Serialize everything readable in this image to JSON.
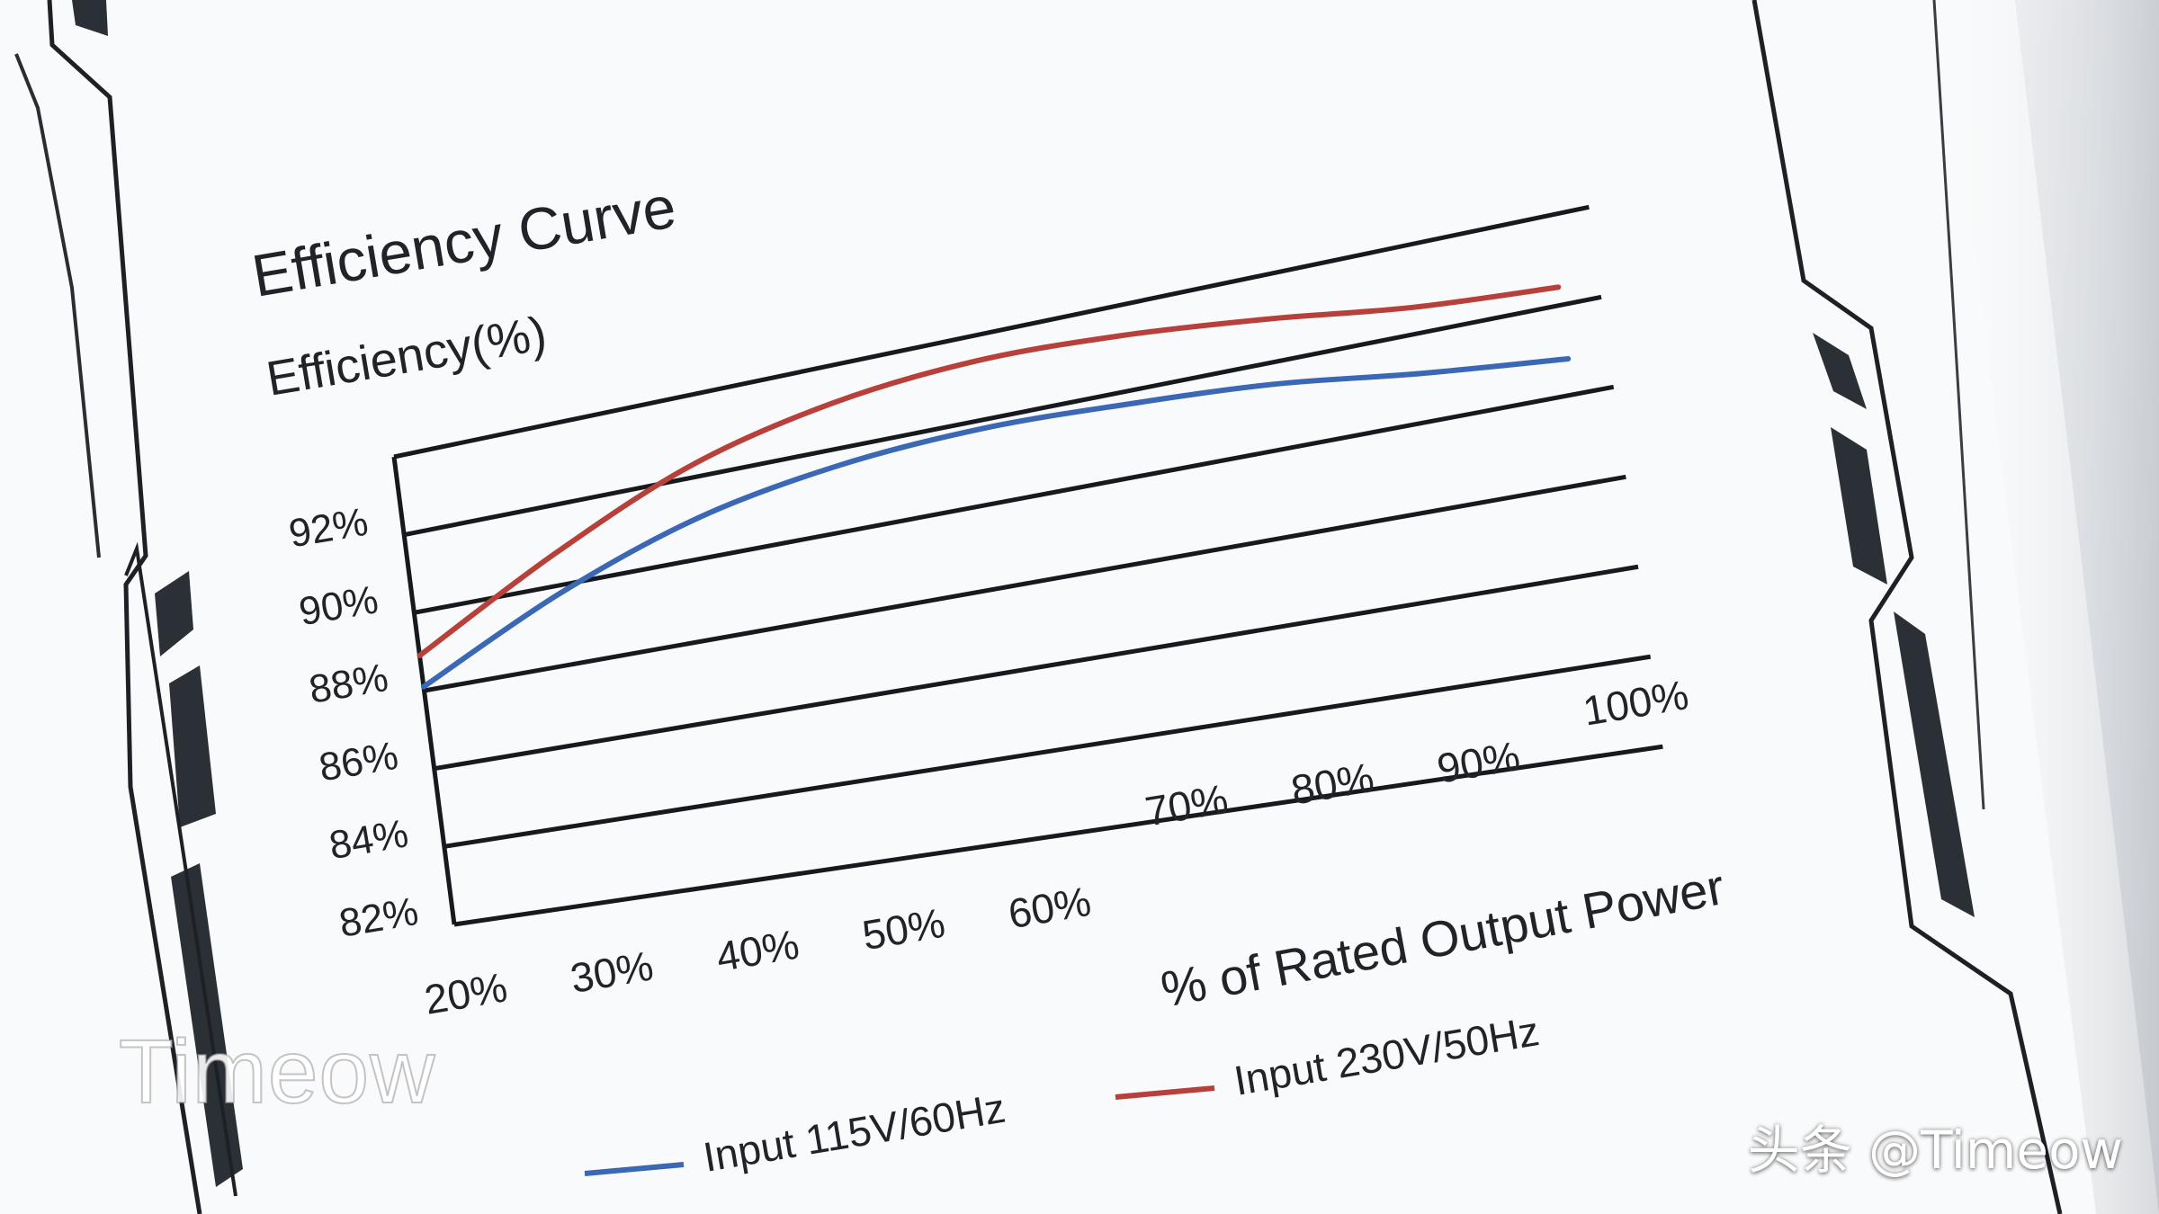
{
  "chart_data": {
    "type": "line",
    "title": "Efficiency Curve",
    "ylabel": "Efficiency(%)",
    "xlabel": "% of Rated Output Power",
    "x": [
      20,
      30,
      40,
      50,
      60,
      70,
      80,
      90,
      100
    ],
    "x_tick_labels": [
      "20%",
      "30%",
      "40%",
      "50%",
      "60%",
      "70%",
      "80%",
      "90%",
      "100%"
    ],
    "y_tick_labels": [
      "82%",
      "84%",
      "86%",
      "88%",
      "90%",
      "92%"
    ],
    "y_ticks": [
      82,
      84,
      86,
      88,
      90,
      92
    ],
    "xlim": [
      20,
      100
    ],
    "ylim": [
      82,
      94
    ],
    "grid": true,
    "legend_position": "bottom",
    "series": [
      {
        "name": "Input 115V/60Hz",
        "color": "#3a68b4",
        "values": [
          88.1,
          89.8,
          91.0,
          91.6,
          91.8,
          91.7,
          91.5,
          91.1,
          90.8
        ]
      },
      {
        "name": "Input 230V/50Hz",
        "color": "#b8403a",
        "values": [
          88.9,
          90.8,
          92.3,
          93.1,
          93.4,
          93.3,
          93.0,
          92.6,
          92.4
        ]
      }
    ]
  },
  "watermarks": {
    "left": "Timeow",
    "right": "头条 @Timeow"
  }
}
